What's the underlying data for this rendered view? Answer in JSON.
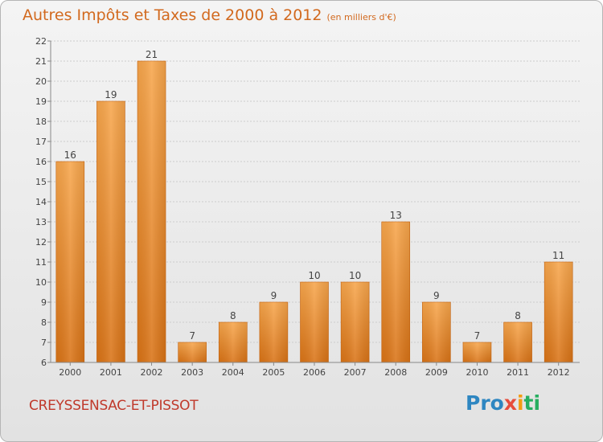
{
  "header": {
    "title": "Autres Impôts et Taxes de 2000 à 2012",
    "unit": "(en milliers d'€)"
  },
  "footer": {
    "commune": "CREYSSENSAC-ET-PISSOT",
    "logo_parts": [
      "Pro",
      "x",
      "i",
      "ti"
    ]
  },
  "colors": {
    "bar": "#f0922e",
    "grid": "#cccccc",
    "title": "#d2691e"
  },
  "chart_data": {
    "type": "bar",
    "title": "Autres Impôts et Taxes de 2000 à 2012",
    "subtitle": "(en milliers d'€)",
    "categories": [
      "2000",
      "2001",
      "2002",
      "2003",
      "2004",
      "2005",
      "2006",
      "2007",
      "2008",
      "2009",
      "2010",
      "2011",
      "2012"
    ],
    "values": [
      16,
      19,
      21,
      7,
      8,
      9,
      10,
      10,
      13,
      9,
      7,
      8,
      11
    ],
    "ylim": [
      6,
      22
    ],
    "yticks": [
      6,
      7,
      8,
      9,
      10,
      11,
      12,
      13,
      14,
      15,
      16,
      17,
      18,
      19,
      20,
      21,
      22
    ],
    "grid": true,
    "legend": "none"
  }
}
